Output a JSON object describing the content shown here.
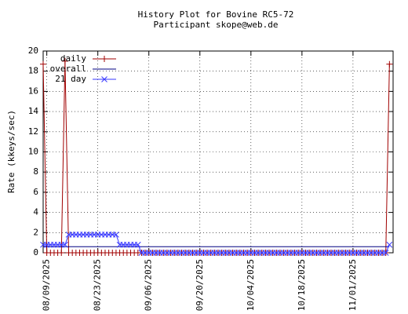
{
  "chart_data": {
    "type": "line",
    "title": "History Plot for Bovine RC5-72",
    "subtitle": "Participant skope@web.de",
    "y_label": "Rate (kkeys/sec)",
    "x": [
      "08/08/2025",
      "08/09/2025",
      "08/10/2025",
      "08/11/2025",
      "08/12/2025",
      "08/13/2025",
      "08/14/2025",
      "08/15/2025",
      "08/16/2025",
      "08/17/2025",
      "08/18/2025",
      "08/19/2025",
      "08/20/2025",
      "08/21/2025",
      "08/22/2025",
      "08/23/2025",
      "08/24/2025",
      "08/25/2025",
      "08/26/2025",
      "08/27/2025",
      "08/28/2025",
      "08/29/2025",
      "08/30/2025",
      "08/31/2025",
      "09/01/2025",
      "09/02/2025",
      "09/03/2025",
      "09/04/2025",
      "09/05/2025",
      "09/06/2025",
      "09/07/2025",
      "09/08/2025",
      "09/09/2025",
      "09/10/2025",
      "09/11/2025",
      "09/12/2025",
      "09/13/2025",
      "09/14/2025",
      "09/15/2025",
      "09/16/2025",
      "09/17/2025",
      "09/18/2025",
      "09/19/2025",
      "09/20/2025",
      "09/21/2025",
      "09/22/2025",
      "09/23/2025",
      "09/24/2025",
      "09/25/2025",
      "09/26/2025",
      "09/27/2025",
      "09/28/2025",
      "09/29/2025",
      "09/30/2025",
      "10/01/2025",
      "10/02/2025",
      "10/03/2025",
      "10/04/2025",
      "10/05/2025",
      "10/06/2025",
      "10/07/2025",
      "10/08/2025",
      "10/09/2025",
      "10/10/2025",
      "10/11/2025",
      "10/12/2025",
      "10/13/2025",
      "10/14/2025",
      "10/15/2025",
      "10/16/2025",
      "10/17/2025",
      "10/18/2025",
      "10/19/2025",
      "10/20/2025",
      "10/21/2025",
      "10/22/2025",
      "10/23/2025",
      "10/24/2025",
      "10/25/2025",
      "10/26/2025",
      "10/27/2025",
      "10/28/2025",
      "10/29/2025",
      "10/30/2025",
      "10/31/2025",
      "11/01/2025",
      "11/02/2025",
      "11/03/2025",
      "11/04/2025",
      "11/05/2025",
      "11/06/2025",
      "11/07/2025",
      "11/08/2025",
      "11/09/2025",
      "11/10/2025",
      "11/11/2025"
    ],
    "series": [
      {
        "name": "daily",
        "color": "#a00000",
        "marker": "+",
        "values": [
          18.7,
          0,
          0,
          0,
          0,
          0,
          19,
          0,
          0,
          0,
          0,
          0,
          0,
          0,
          0,
          0,
          0,
          0,
          0,
          0,
          0,
          0,
          0,
          0,
          0,
          0,
          0,
          0,
          0,
          0,
          0,
          0,
          0,
          0,
          0,
          0,
          0,
          0,
          0,
          0,
          0,
          0,
          0,
          0,
          0,
          0,
          0,
          0,
          0,
          0,
          0,
          0,
          0,
          0,
          0,
          0,
          0,
          0,
          0,
          0,
          0,
          0,
          0,
          0,
          0,
          0,
          0,
          0,
          0,
          0,
          0,
          0,
          0,
          0,
          0,
          0,
          0,
          0,
          0,
          0,
          0,
          0,
          0,
          0,
          0,
          0,
          0,
          0,
          0,
          0,
          0,
          0,
          0,
          0,
          0,
          18.7
        ]
      },
      {
        "name": "overall",
        "color": "#000080",
        "marker": null,
        "values": [
          0.6,
          0.6,
          0.6,
          0.6,
          0.6,
          0.6,
          0.6,
          0.6,
          0.6,
          0.6,
          0.6,
          0.6,
          0.6,
          0.6,
          0.6,
          0.6,
          0.6,
          0.6,
          0.6,
          0.6,
          0.6,
          0.6,
          0.6,
          0.6,
          0.6,
          0.6,
          0.6,
          0.6,
          0.6,
          0.6,
          0.6,
          0.6,
          0.6,
          0.6,
          0.6,
          0.6,
          0.6,
          0.6,
          0.6,
          0.6,
          0.6,
          0.6,
          0.6,
          0.6,
          0.6,
          0.6,
          0.6,
          0.6,
          0.6,
          0.6,
          0.6,
          0.6,
          0.6,
          0.6,
          0.6,
          0.6,
          0.6,
          0.6,
          0.6,
          0.6,
          0.6,
          0.6,
          0.6,
          0.6,
          0.6,
          0.6,
          0.6,
          0.6,
          0.6,
          0.6,
          0.6,
          0.6,
          0.6,
          0.6,
          0.6,
          0.6,
          0.6,
          0.6,
          0.6,
          0.6,
          0.6,
          0.6,
          0.6,
          0.6,
          0.6,
          0.6,
          0.6,
          0.6,
          0.6,
          0.6,
          0.6,
          0.6,
          0.6,
          0.6,
          0.6,
          0.6
        ]
      },
      {
        "name": "21 day",
        "color": "#3a3aff",
        "marker": "x",
        "values": [
          0.8,
          0.8,
          0.8,
          0.8,
          0.8,
          0.8,
          0.8,
          1.8,
          1.8,
          1.8,
          1.8,
          1.8,
          1.8,
          1.8,
          1.8,
          1.8,
          1.8,
          1.8,
          1.8,
          1.8,
          1.8,
          0.8,
          0.8,
          0.8,
          0.8,
          0.8,
          0.8,
          0,
          0,
          0,
          0,
          0,
          0,
          0,
          0,
          0,
          0,
          0,
          0,
          0,
          0,
          0,
          0,
          0,
          0,
          0,
          0,
          0,
          0,
          0,
          0,
          0,
          0,
          0,
          0,
          0,
          0,
          0,
          0,
          0,
          0,
          0,
          0,
          0,
          0,
          0,
          0,
          0,
          0,
          0,
          0,
          0,
          0,
          0,
          0,
          0,
          0,
          0,
          0,
          0,
          0,
          0,
          0,
          0,
          0,
          0,
          0,
          0,
          0,
          0,
          0,
          0,
          0,
          0,
          0,
          0.8
        ]
      }
    ],
    "xlim": [
      "08/08/2025",
      "11/12/2025"
    ],
    "xticks": [
      "08/09/2025",
      "08/23/2025",
      "09/06/2025",
      "09/20/2025",
      "10/04/2025",
      "10/18/2025",
      "11/01/2025"
    ],
    "ylim": [
      0,
      20
    ],
    "yticks": [
      0,
      2,
      4,
      6,
      8,
      10,
      12,
      14,
      16,
      18,
      20
    ],
    "grid": true,
    "legend": "top-left"
  }
}
